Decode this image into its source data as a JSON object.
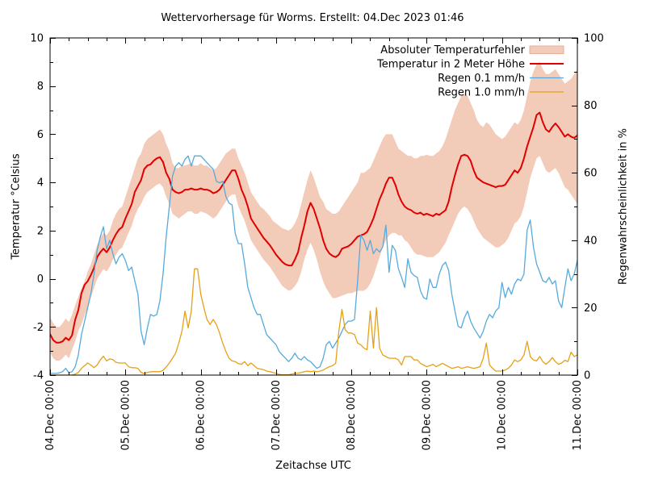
{
  "chart_data": {
    "type": "line",
    "title": "Wettervorhersage für Worms. Erstellt: 04.Dec 2023 01:46",
    "x_axis": {
      "label": "Zeitachse UTC",
      "tick_labels": [
        "04.Dec 00:00",
        "05.Dec 00:00",
        "06.Dec 00:00",
        "07.Dec 00:00",
        "08.Dec 00:00",
        "09.Dec 00:00",
        "10.Dec 00:00",
        "11.Dec 00:00"
      ],
      "range_hours": [
        0,
        168
      ],
      "major_tick_step_hours": 24,
      "minor_tick_step_hours": 6,
      "step_hours": 1
    },
    "y_left": {
      "label": "Temperatur °Celsius",
      "range": [
        -4,
        10
      ],
      "ticks": [
        10,
        8,
        6,
        4,
        2,
        0,
        -2,
        -4
      ],
      "minor_step": 1
    },
    "y_right": {
      "label": "Regenwahrscheinlichkeit in %",
      "range": [
        0,
        100
      ],
      "ticks": [
        100,
        80,
        60,
        40,
        20,
        0
      ],
      "minor_step": 10
    },
    "grid": false,
    "legend_position": "top-right-inside",
    "colors": {
      "band": "#f2cbb9",
      "band_edge": "#e3b29a",
      "temperature": "#e00000",
      "rain01": "#56aadc",
      "rain10": "#e6a117"
    },
    "series": [
      {
        "name": "Absoluter Temperaturfehler",
        "type": "band",
        "axis": "left",
        "color": "#f2cbb9",
        "upper": [
          -1.6,
          -1.85,
          -2.0,
          -2.0,
          -1.85,
          -1.65,
          -1.8,
          -1.5,
          -1.1,
          -0.75,
          -0.4,
          -0.1,
          0.3,
          0.6,
          1.0,
          1.4,
          1.7,
          1.9,
          1.8,
          2.0,
          2.4,
          2.7,
          2.9,
          3.0,
          3.4,
          3.8,
          4.2,
          4.6,
          5.0,
          5.2,
          5.6,
          5.8,
          5.9,
          6.0,
          6.1,
          6.2,
          6.0,
          5.6,
          5.3,
          4.8,
          4.6,
          4.6,
          4.7,
          4.7,
          4.75,
          4.8,
          4.7,
          4.7,
          4.8,
          4.7,
          4.7,
          4.6,
          4.5,
          4.6,
          4.8,
          5.0,
          5.2,
          5.3,
          5.4,
          5.4,
          5.0,
          4.7,
          4.4,
          4.0,
          3.6,
          3.4,
          3.2,
          3.0,
          2.9,
          2.75,
          2.6,
          2.4,
          2.3,
          2.2,
          2.1,
          2.05,
          2.0,
          2.1,
          2.3,
          2.6,
          3.1,
          3.6,
          4.1,
          4.5,
          4.2,
          3.8,
          3.4,
          3.2,
          2.9,
          2.8,
          2.7,
          2.7,
          2.8,
          3.0,
          3.2,
          3.4,
          3.6,
          3.8,
          4.0,
          4.4,
          4.4,
          4.5,
          4.6,
          4.9,
          5.2,
          5.5,
          5.8,
          6.0,
          6.0,
          6.0,
          5.7,
          5.4,
          5.3,
          5.2,
          5.1,
          5.1,
          5.0,
          5.0,
          5.1,
          5.1,
          5.15,
          5.1,
          5.1,
          5.2,
          5.3,
          5.5,
          5.8,
          6.2,
          6.6,
          7.0,
          7.3,
          7.6,
          7.7,
          7.6,
          7.3,
          7.0,
          6.6,
          6.4,
          6.3,
          6.5,
          6.4,
          6.2,
          6.0,
          5.9,
          5.8,
          5.9,
          6.1,
          6.3,
          6.5,
          6.4,
          6.6,
          7.0,
          7.6,
          8.2,
          8.6,
          8.9,
          9.0,
          8.7,
          8.5,
          8.5,
          8.6,
          8.7,
          8.5,
          8.3,
          8.1,
          8.2,
          8.3,
          8.5,
          8.7
        ],
        "lower": [
          -3.05,
          -3.3,
          -3.4,
          -3.4,
          -3.3,
          -3.15,
          -3.3,
          -2.95,
          -2.6,
          -2.15,
          -1.9,
          -1.5,
          -1.2,
          -0.75,
          -0.4,
          0.0,
          0.2,
          0.4,
          0.3,
          0.5,
          0.8,
          1.0,
          1.2,
          1.3,
          1.6,
          1.9,
          2.2,
          2.6,
          2.9,
          3.1,
          3.4,
          3.6,
          3.7,
          3.8,
          3.9,
          3.95,
          3.8,
          3.4,
          3.1,
          2.7,
          2.6,
          2.5,
          2.6,
          2.7,
          2.8,
          2.8,
          2.7,
          2.7,
          2.8,
          2.75,
          2.7,
          2.6,
          2.5,
          2.6,
          2.8,
          3.0,
          3.2,
          3.4,
          3.5,
          3.5,
          3.0,
          2.7,
          2.4,
          2.0,
          1.6,
          1.4,
          1.2,
          1.0,
          0.8,
          0.65,
          0.5,
          0.3,
          0.1,
          -0.1,
          -0.3,
          -0.4,
          -0.5,
          -0.45,
          -0.3,
          -0.1,
          0.3,
          0.8,
          1.2,
          1.5,
          1.2,
          0.8,
          0.3,
          -0.1,
          -0.4,
          -0.6,
          -0.8,
          -0.8,
          -0.75,
          -0.7,
          -0.65,
          -0.6,
          -0.6,
          -0.55,
          -0.5,
          -0.5,
          -0.5,
          -0.4,
          -0.2,
          0.1,
          0.5,
          0.9,
          1.3,
          1.6,
          1.8,
          1.9,
          1.9,
          1.8,
          1.8,
          1.6,
          1.5,
          1.3,
          1.1,
          1.0,
          1.0,
          0.95,
          0.9,
          0.9,
          0.9,
          1.0,
          1.1,
          1.3,
          1.5,
          1.8,
          2.1,
          2.4,
          2.7,
          2.9,
          3.0,
          2.9,
          2.7,
          2.4,
          2.1,
          1.9,
          1.7,
          1.6,
          1.5,
          1.4,
          1.3,
          1.3,
          1.4,
          1.5,
          1.7,
          2.0,
          2.3,
          2.4,
          2.6,
          3.0,
          3.6,
          4.2,
          4.6,
          5.0,
          5.1,
          4.8,
          4.5,
          4.4,
          4.5,
          4.6,
          4.4,
          4.1,
          3.8,
          3.7,
          3.5,
          3.3,
          3.1
        ]
      },
      {
        "name": "Temperatur in 2 Meter Höhe",
        "type": "line",
        "axis": "left",
        "color": "#e00000",
        "width": 2,
        "values": [
          -2.3,
          -2.55,
          -2.65,
          -2.65,
          -2.6,
          -2.45,
          -2.55,
          -2.35,
          -1.7,
          -1.3,
          -0.6,
          -0.25,
          -0.1,
          0.15,
          0.45,
          0.9,
          1.1,
          1.25,
          1.1,
          1.3,
          1.6,
          1.85,
          2.05,
          2.15,
          2.5,
          2.8,
          3.1,
          3.6,
          3.85,
          4.1,
          4.55,
          4.7,
          4.75,
          4.9,
          5.0,
          5.05,
          4.85,
          4.4,
          4.15,
          3.7,
          3.6,
          3.55,
          3.6,
          3.7,
          3.7,
          3.75,
          3.7,
          3.7,
          3.75,
          3.7,
          3.7,
          3.65,
          3.55,
          3.6,
          3.7,
          3.9,
          4.1,
          4.3,
          4.5,
          4.5,
          4.15,
          3.7,
          3.4,
          3.0,
          2.5,
          2.3,
          2.1,
          1.9,
          1.7,
          1.55,
          1.4,
          1.2,
          1.0,
          0.85,
          0.7,
          0.6,
          0.55,
          0.55,
          0.8,
          1.1,
          1.7,
          2.2,
          2.8,
          3.15,
          2.9,
          2.5,
          2.1,
          1.6,
          1.25,
          1.05,
          0.95,
          0.9,
          1.0,
          1.25,
          1.3,
          1.35,
          1.45,
          1.6,
          1.75,
          1.8,
          1.85,
          1.95,
          2.2,
          2.5,
          2.9,
          3.3,
          3.6,
          3.95,
          4.2,
          4.2,
          3.9,
          3.5,
          3.2,
          3.0,
          2.9,
          2.85,
          2.75,
          2.7,
          2.75,
          2.65,
          2.7,
          2.65,
          2.6,
          2.7,
          2.65,
          2.75,
          2.85,
          3.2,
          3.8,
          4.3,
          4.75,
          5.1,
          5.15,
          5.1,
          4.9,
          4.5,
          4.2,
          4.1,
          4.0,
          3.95,
          3.9,
          3.85,
          3.8,
          3.85,
          3.85,
          3.9,
          4.1,
          4.3,
          4.5,
          4.4,
          4.6,
          5.0,
          5.5,
          5.9,
          6.3,
          6.8,
          6.9,
          6.5,
          6.2,
          6.1,
          6.3,
          6.45,
          6.3,
          6.1,
          5.9,
          6.0,
          5.9,
          5.85,
          5.95
        ]
      },
      {
        "name": "Regen 0.1 mm/h",
        "type": "line",
        "axis": "right",
        "color": "#56aadc",
        "width": 1.3,
        "values": [
          0.5,
          0.5,
          0.5,
          0.7,
          1.0,
          2.0,
          0.7,
          1.0,
          2.5,
          6,
          12,
          16,
          20,
          24,
          30,
          37,
          41,
          44,
          37.5,
          40,
          36,
          33,
          35,
          36,
          34,
          31,
          32,
          28,
          24,
          13,
          9,
          14,
          18,
          17.5,
          18,
          22,
          30,
          41,
          50,
          59,
          62,
          63,
          62,
          64,
          65,
          62,
          65,
          65,
          65,
          64,
          63,
          62,
          61,
          57.5,
          57,
          57.5,
          53,
          51,
          50.5,
          42,
          39,
          39,
          33,
          26,
          23,
          20,
          18,
          18,
          15,
          12,
          11,
          10,
          9,
          7,
          6,
          5,
          4,
          5,
          6.5,
          5,
          4.5,
          5.5,
          4.5,
          4,
          3,
          2,
          2.5,
          5,
          9,
          10,
          8,
          9.5,
          11,
          13,
          15,
          16,
          16,
          16.5,
          28,
          41.5,
          40,
          37,
          40,
          36,
          37.5,
          36.5,
          38,
          44.5,
          30.5,
          38.5,
          37,
          31.5,
          29,
          26,
          34.5,
          30.5,
          29.5,
          29,
          25,
          23,
          22.5,
          28.5,
          26,
          26,
          30,
          32.5,
          33.5,
          31,
          24,
          19,
          14.5,
          14,
          17,
          19,
          16,
          14,
          12.5,
          11,
          13,
          16,
          18,
          17,
          19,
          20,
          27.5,
          23,
          26,
          24,
          27,
          28.5,
          28,
          30,
          43,
          46,
          38,
          33,
          30.5,
          28,
          27.5,
          29,
          27,
          28,
          22,
          20,
          26,
          31.5,
          28,
          30,
          34
        ]
      },
      {
        "name": "Regen 1.0 mm/h",
        "type": "line",
        "axis": "right",
        "color": "#e6a117",
        "width": 1.3,
        "values": [
          0,
          0,
          0,
          0,
          0,
          0,
          0,
          0,
          0.3,
          0.8,
          2,
          2.8,
          3.6,
          3,
          2.2,
          3,
          4.5,
          5.6,
          4.2,
          4.8,
          4.6,
          3.8,
          3.6,
          3.6,
          3.6,
          2.5,
          2.2,
          2.2,
          2,
          0.8,
          0.5,
          0.8,
          1,
          1,
          1,
          1,
          1.4,
          2.4,
          3.6,
          5,
          6.5,
          9.5,
          13,
          19,
          14,
          19,
          31.5,
          31.5,
          24,
          20,
          16.5,
          15,
          16.5,
          15,
          12.5,
          9.5,
          7,
          5,
          4.2,
          4,
          3.4,
          3.2,
          4,
          2.8,
          3.6,
          2.8,
          2,
          1.8,
          1.6,
          1.2,
          1,
          0.8,
          0.5,
          0.2,
          0.1,
          0.1,
          0.1,
          0.3,
          0.5,
          0.6,
          0.8,
          1,
          1.2,
          1,
          1.2,
          1,
          1.2,
          1.5,
          2,
          2.5,
          2.8,
          3.5,
          13,
          19.5,
          13.5,
          12.5,
          12.5,
          12,
          9.5,
          9,
          8,
          7.5,
          19,
          8,
          20,
          8,
          6,
          5.5,
          5,
          5,
          5,
          4.5,
          3,
          5.5,
          5.5,
          5.5,
          4.5,
          4.5,
          3.5,
          3,
          2.5,
          2.8,
          3.2,
          2.5,
          3,
          3.5,
          3,
          2.5,
          2,
          2.2,
          2.5,
          2,
          2.2,
          2.5,
          2.2,
          2,
          2.2,
          2.5,
          5,
          9.5,
          3,
          2,
          1.2,
          1.2,
          1.2,
          1.5,
          2,
          3,
          4.5,
          4,
          4.5,
          6,
          10,
          5.5,
          4.5,
          4.2,
          5.5,
          4,
          3.2,
          4,
          5.2,
          4,
          3.2,
          3.6,
          4.4,
          4,
          6.8,
          5.5,
          6
        ]
      }
    ]
  }
}
